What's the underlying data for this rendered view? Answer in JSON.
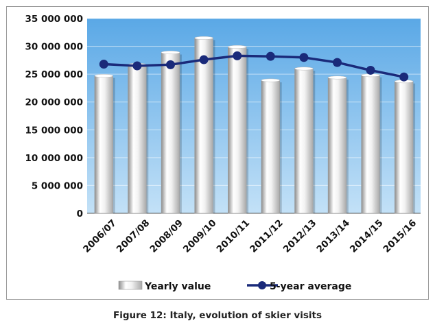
{
  "caption": "Figure 12: Italy, evolution of skier visits",
  "chart_data": {
    "type": "bar",
    "categories": [
      "2006/07",
      "2007/08",
      "2008/09",
      "2009/10",
      "2010/11",
      "2011/12",
      "2012/13",
      "2013/14",
      "2014/15",
      "2015/16"
    ],
    "series": [
      {
        "name": "Yearly value",
        "kind": "bar",
        "values": [
          24700000,
          26700000,
          28900000,
          31500000,
          29900000,
          23900000,
          26000000,
          24400000,
          24800000,
          23700000
        ]
      },
      {
        "name": "5-year average",
        "kind": "line",
        "values": [
          26800000,
          26500000,
          26700000,
          27600000,
          28300000,
          28200000,
          28000000,
          27100000,
          25700000,
          24500000
        ]
      }
    ],
    "yticks": [
      "0",
      "5 000 000",
      "10 000 000",
      "15 000 000",
      "20 000 000",
      "25 000 000",
      "30 000 000",
      "35 000 000"
    ],
    "ylim": [
      0,
      35000000
    ],
    "legend": {
      "position": "bottom",
      "items": [
        "Yearly value",
        "5-year average"
      ]
    },
    "colors": {
      "plot_bg_top": "#5aa8e6",
      "plot_bg_bottom": "#c3e1f7",
      "line": "#1a2a7a",
      "bar_light": "#ffffff",
      "bar_dark": "#a9a9a9"
    },
    "grid": true
  }
}
